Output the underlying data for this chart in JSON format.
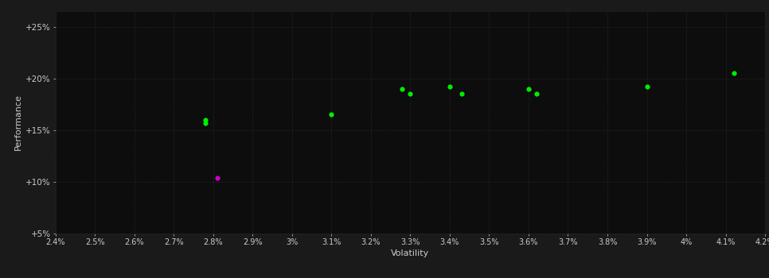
{
  "background_color": "#1a1a1a",
  "plot_bg_color": "#0d0d0d",
  "grid_color": "#333333",
  "text_color": "#cccccc",
  "xlabel": "Volatility",
  "ylabel": "Performance",
  "xlim": [
    0.024,
    0.042
  ],
  "ylim": [
    0.05,
    0.265
  ],
  "xticks": [
    0.024,
    0.025,
    0.026,
    0.027,
    0.028,
    0.029,
    0.03,
    0.031,
    0.032,
    0.033,
    0.034,
    0.035,
    0.036,
    0.037,
    0.038,
    0.039,
    0.04,
    0.041,
    0.042
  ],
  "yticks": [
    0.05,
    0.1,
    0.15,
    0.2,
    0.25
  ],
  "green_points": [
    [
      0.0278,
      0.16
    ],
    [
      0.0278,
      0.157
    ],
    [
      0.031,
      0.165
    ],
    [
      0.0328,
      0.19
    ],
    [
      0.033,
      0.185
    ],
    [
      0.034,
      0.192
    ],
    [
      0.0343,
      0.185
    ],
    [
      0.036,
      0.19
    ],
    [
      0.0362,
      0.185
    ],
    [
      0.039,
      0.192
    ],
    [
      0.0412,
      0.205
    ]
  ],
  "magenta_points": [
    [
      0.0281,
      0.104
    ]
  ],
  "green_color": "#00ee00",
  "magenta_color": "#cc00cc",
  "marker_size": 20
}
